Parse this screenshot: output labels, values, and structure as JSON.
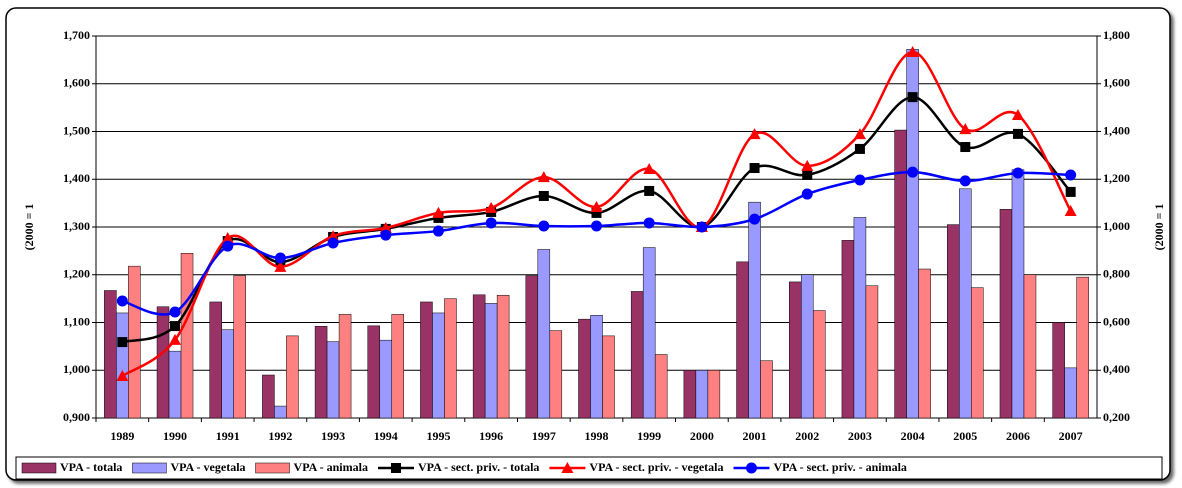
{
  "chart_data": {
    "type": "combo",
    "ylabel": "(2000 = 1",
    "y2label": "(2000 = 1",
    "categories": [
      "1989",
      "1990",
      "1991",
      "1992",
      "1993",
      "1994",
      "1995",
      "1996",
      "1997",
      "1998",
      "1999",
      "2000",
      "2001",
      "2002",
      "2003",
      "2004",
      "2005",
      "2006",
      "2007"
    ],
    "ylim": [
      0.9,
      1.7
    ],
    "yticks": [
      {
        "value": 0.9,
        "label": "0,900"
      },
      {
        "value": 1.0,
        "label": "1,000"
      },
      {
        "value": 1.1,
        "label": "1,100"
      },
      {
        "value": 1.2,
        "label": "1,200"
      },
      {
        "value": 1.3,
        "label": "1,300"
      },
      {
        "value": 1.4,
        "label": "1,400"
      },
      {
        "value": 1.5,
        "label": "1,500"
      },
      {
        "value": 1.6,
        "label": "1,600"
      },
      {
        "value": 1.7,
        "label": "1,700"
      }
    ],
    "y2lim": [
      0.2,
      1.8
    ],
    "y2ticks": [
      {
        "value": 0.2,
        "label": "0,200"
      },
      {
        "value": 0.4,
        "label": "0,400"
      },
      {
        "value": 0.6,
        "label": "0,600"
      },
      {
        "value": 0.8,
        "label": "0,800"
      },
      {
        "value": 1.0,
        "label": "1,000"
      },
      {
        "value": 1.2,
        "label": "1,200"
      },
      {
        "value": 1.4,
        "label": "1,400"
      },
      {
        "value": 1.6,
        "label": "1,600"
      },
      {
        "value": 1.8,
        "label": "1,800"
      }
    ],
    "grid": true,
    "legend": "bottom",
    "series": [
      {
        "name": "VPA - totala",
        "type": "bar",
        "color": "#993366",
        "values": [
          1.167,
          1.133,
          1.143,
          0.99,
          1.092,
          1.093,
          1.143,
          1.158,
          1.198,
          1.107,
          1.165,
          1.0,
          1.227,
          1.185,
          1.272,
          1.503,
          1.305,
          1.337,
          1.1
        ]
      },
      {
        "name": "VPA - vegetala",
        "type": "bar",
        "color": "#9999ff",
        "values": [
          1.12,
          1.04,
          1.085,
          0.925,
          1.06,
          1.063,
          1.12,
          1.14,
          1.253,
          1.115,
          1.257,
          1.0,
          1.352,
          1.2,
          1.32,
          1.672,
          1.38,
          1.42,
          1.005
        ]
      },
      {
        "name": "VPA - animala",
        "type": "bar",
        "color": "#ff8080",
        "values": [
          1.218,
          1.245,
          1.198,
          1.072,
          1.117,
          1.117,
          1.15,
          1.157,
          1.083,
          1.072,
          1.033,
          1.0,
          1.02,
          1.125,
          1.177,
          1.212,
          1.173,
          1.2,
          1.195
        ]
      },
      {
        "name": "VPA - sect. priv. - totala",
        "type": "line",
        "axis": "y2",
        "marker": "square",
        "color": "#000000",
        "values": [
          0.518,
          0.585,
          0.941,
          0.853,
          0.958,
          0.992,
          1.038,
          1.063,
          1.13,
          1.059,
          1.151,
          1.0,
          1.247,
          1.218,
          1.327,
          1.544,
          1.335,
          1.39,
          1.147
        ]
      },
      {
        "name": "VPA - sect. priv. - vegetala",
        "type": "line",
        "axis": "y2",
        "marker": "triangle",
        "color": "#ff0000",
        "values": [
          0.376,
          0.527,
          0.954,
          0.833,
          0.962,
          0.996,
          1.059,
          1.08,
          1.209,
          1.084,
          1.243,
          1.0,
          1.389,
          1.256,
          1.389,
          1.733,
          1.41,
          1.469,
          1.067
        ]
      },
      {
        "name": "VPA - sect. priv. - animala",
        "type": "line",
        "axis": "y2",
        "marker": "circle",
        "color": "#0000ff",
        "values": [
          0.69,
          0.644,
          0.92,
          0.87,
          0.933,
          0.966,
          0.983,
          1.017,
          1.004,
          1.004,
          1.017,
          1.0,
          1.033,
          1.138,
          1.197,
          1.23,
          1.193,
          1.226,
          1.218
        ]
      }
    ]
  }
}
